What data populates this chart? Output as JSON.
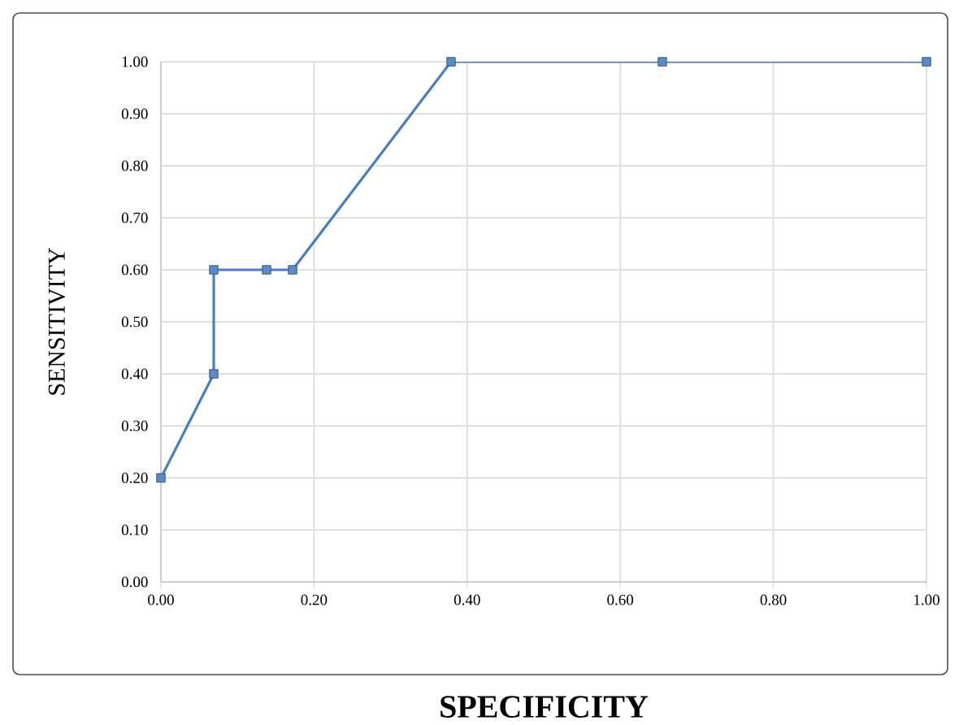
{
  "chart_data": {
    "type": "line",
    "xlabel": "SPECIFICITY",
    "ylabel": "SENSITIVITY",
    "x": [
      0.0,
      0.069,
      0.069,
      0.138,
      0.172,
      0.379,
      0.655,
      1.0
    ],
    "series": [
      {
        "color": "#4a7ebb",
        "values": [
          0.2,
          0.4,
          0.6,
          0.6,
          0.6,
          1.0,
          1.0,
          1.0
        ]
      }
    ],
    "xlim": [
      0,
      1
    ],
    "ylim": [
      0,
      1
    ],
    "xticks": [
      {
        "value": 0,
        "label": "0.00"
      },
      {
        "value": 0.2,
        "label": "0.20"
      },
      {
        "value": 0.4,
        "label": "0.40"
      },
      {
        "value": 0.6,
        "label": "0.60"
      },
      {
        "value": 0.8,
        "label": "0.80"
      },
      {
        "value": 1,
        "label": "1.00"
      }
    ],
    "yticks": [
      {
        "value": 0,
        "label": "0.00"
      },
      {
        "value": 0.1,
        "label": "0.10"
      },
      {
        "value": 0.2,
        "label": "0.20"
      },
      {
        "value": 0.3,
        "label": "0.30"
      },
      {
        "value": 0.4,
        "label": "0.40"
      },
      {
        "value": 0.5,
        "label": "0.50"
      },
      {
        "value": 0.6,
        "label": "0.60"
      },
      {
        "value": 0.7,
        "label": "0.70"
      },
      {
        "value": 0.8,
        "label": "0.80"
      },
      {
        "value": 0.9,
        "label": "0.90"
      },
      {
        "value": 1,
        "label": "1.00"
      }
    ],
    "grid": true,
    "marker": "square",
    "line_style": "solid"
  }
}
